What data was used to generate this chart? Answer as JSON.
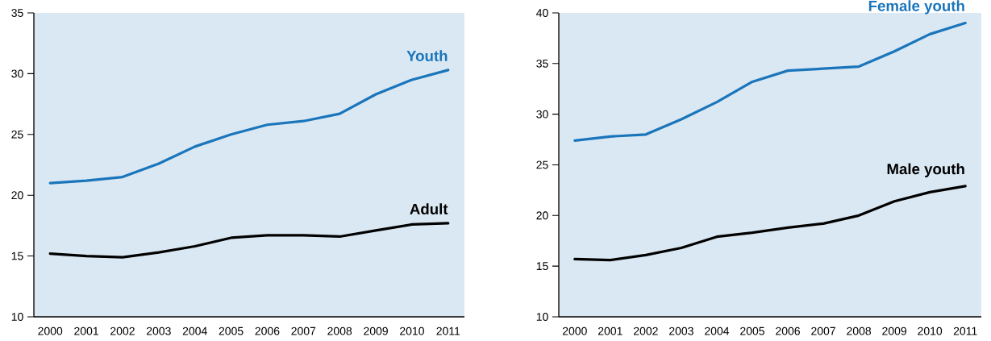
{
  "chart_data": [
    {
      "type": "line",
      "categories": [
        "2000",
        "2001",
        "2002",
        "2003",
        "2004",
        "2005",
        "2006",
        "2007",
        "2008",
        "2009",
        "2010",
        "2011"
      ],
      "ylim": [
        10,
        35
      ],
      "yticks": [
        10,
        15,
        20,
        25,
        30,
        35
      ],
      "series": [
        {
          "name": "Youth",
          "color": "#1a75bb",
          "values": [
            21.0,
            21.2,
            21.5,
            22.6,
            24.0,
            25.0,
            25.8,
            26.1,
            26.7,
            28.3,
            29.5,
            30.3
          ]
        },
        {
          "name": "Adult",
          "color": "#000000",
          "values": [
            15.2,
            15.0,
            14.9,
            15.3,
            15.8,
            16.5,
            16.7,
            16.7,
            16.6,
            17.1,
            17.6,
            17.7
          ]
        }
      ]
    },
    {
      "type": "line",
      "categories": [
        "2000",
        "2001",
        "2002",
        "2003",
        "2004",
        "2005",
        "2006",
        "2007",
        "2008",
        "2009",
        "2010",
        "2011"
      ],
      "ylim": [
        10,
        40
      ],
      "yticks": [
        10,
        15,
        20,
        25,
        30,
        35,
        40
      ],
      "series": [
        {
          "name": "Female youth",
          "color": "#1a75bb",
          "values": [
            27.4,
            27.8,
            28.0,
            29.5,
            31.2,
            33.2,
            34.3,
            34.5,
            34.7,
            36.2,
            37.9,
            39.0
          ]
        },
        {
          "name": "Male youth",
          "color": "#000000",
          "values": [
            15.7,
            15.6,
            16.1,
            16.8,
            17.9,
            18.3,
            18.8,
            19.2,
            20.0,
            21.4,
            22.3,
            22.9
          ]
        }
      ]
    }
  ]
}
